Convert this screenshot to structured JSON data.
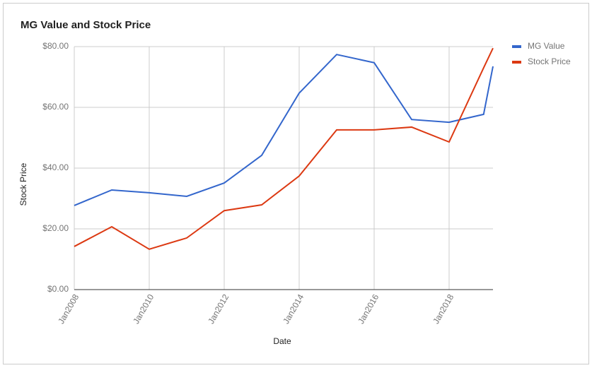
{
  "chart_data": {
    "type": "line",
    "title": "MG Value and Stock Price",
    "x_label": "Date",
    "y_label": "Stock Price",
    "x": [
      2008,
      2009,
      2010,
      2011,
      2012,
      2013,
      2014,
      2015,
      2016,
      2017,
      2018,
      2018.92,
      2019.17
    ],
    "series": [
      {
        "name": "MG Value",
        "color": "#3366cc",
        "values": [
          27.7,
          32.8,
          31.9,
          30.7,
          35.1,
          44.2,
          64.7,
          77.4,
          74.7,
          56.0,
          55.1,
          57.7,
          73.5
        ]
      },
      {
        "name": "Stock Price",
        "color": "#dc3912",
        "values": [
          14.2,
          20.7,
          13.3,
          17.0,
          26.0,
          27.9,
          37.4,
          52.6,
          52.6,
          53.5,
          48.6,
          73.0,
          79.5
        ]
      }
    ],
    "xlim": [
      2008,
      2019.17
    ],
    "xticks": [
      {
        "value": 2008,
        "label": "Jan2008"
      },
      {
        "value": 2010,
        "label": "Jan2010"
      },
      {
        "value": 2012,
        "label": "Jan2012"
      },
      {
        "value": 2014,
        "label": "Jan2014"
      },
      {
        "value": 2016,
        "label": "Jan2016"
      },
      {
        "value": 2018,
        "label": "Jan2018"
      }
    ],
    "ylim": [
      0,
      80
    ],
    "yticks": [
      {
        "value": 0,
        "label": "$0.00"
      },
      {
        "value": 20,
        "label": "$20.00"
      },
      {
        "value": 40,
        "label": "$40.00"
      },
      {
        "value": 60,
        "label": "$60.00"
      },
      {
        "value": 80,
        "label": "$80.00"
      }
    ],
    "grid": true,
    "legend": "right"
  }
}
